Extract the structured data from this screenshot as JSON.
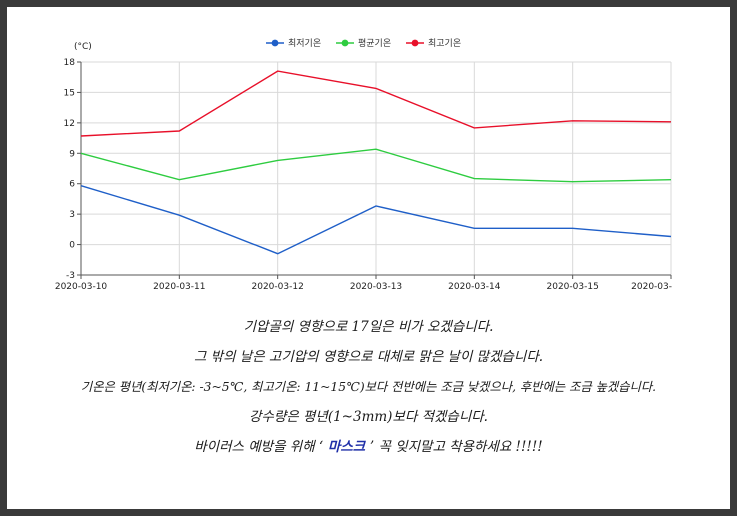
{
  "chart_data": {
    "type": "line",
    "title": "",
    "xlabel": "",
    "ylabel": "(°C)",
    "categories": [
      "2020-03-10",
      "2020-03-11",
      "2020-03-12",
      "2020-03-13",
      "2020-03-14",
      "2020-03-15",
      "2020-03-"
    ],
    "ylim": [
      -3,
      18
    ],
    "yticks": [
      -3,
      0,
      3,
      6,
      9,
      12,
      15,
      18
    ],
    "grid": true,
    "legend": "top-center",
    "series": [
      {
        "name": "최저기온",
        "color": "#1f5fc8",
        "values": [
          5.8,
          2.9,
          -0.9,
          3.8,
          1.6,
          1.6,
          0.8
        ]
      },
      {
        "name": "평균기온",
        "color": "#2ecc40",
        "values": [
          9.0,
          6.4,
          8.3,
          9.4,
          6.5,
          6.2,
          6.4
        ]
      },
      {
        "name": "최고기온",
        "color": "#e8102a",
        "values": [
          10.7,
          11.2,
          17.1,
          15.4,
          11.5,
          12.2,
          12.1
        ]
      }
    ]
  },
  "forecast": {
    "line1": "기압골의 영향으로 17일은 비가 오겠습니다.",
    "line2": "그 밖의 날은 고기압의 영향으로 대체로 맑은 날이 많겠습니다.",
    "line3": "기온은 평년(최저기온: -3~5℃, 최고기온: 11~15℃)보다 전반에는 조금 낮겠으나, 후반에는 조금 높겠습니다.",
    "line4": "강수량은 평년(1~3mm)보다 적겠습니다.",
    "line5_pre": "바이러스 예방을 위해 ‘",
    "line5_mask": " 마스크 ",
    "line5_post": "’ 꼭 잊지말고 착용하세요 !!!!!"
  }
}
